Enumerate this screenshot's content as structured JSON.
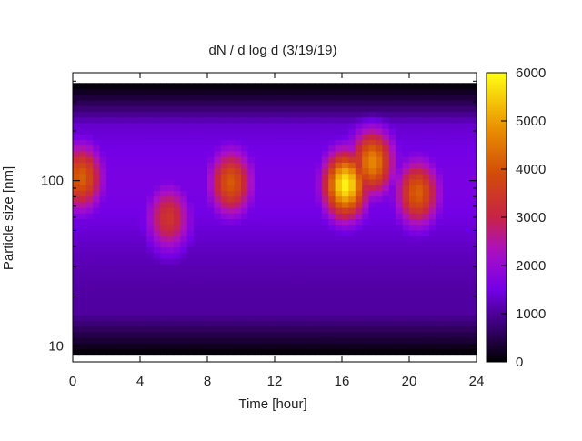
{
  "chart_data": {
    "type": "heatmap",
    "title": "dN / d log d (3/19/19)",
    "xlabel": "Time [hour]",
    "ylabel": "Particle size [nm]",
    "x_range": [
      0,
      24
    ],
    "x_ticks": [
      0,
      4,
      8,
      12,
      16,
      20,
      24
    ],
    "y_scale": "log",
    "y_range_nm": [
      8,
      450
    ],
    "y_ticks": [
      10,
      100
    ],
    "y_ticks_minor": [
      20,
      30,
      40,
      50,
      60,
      70,
      80,
      90,
      200,
      300,
      400
    ],
    "data_y_range_nm": [
      8.9,
      390
    ],
    "colorbar": {
      "range": [
        0,
        6000
      ],
      "ticks": [
        0,
        1000,
        2000,
        3000,
        4000,
        5000,
        6000
      ],
      "palette": "black-purple-magenta-orange-yellow"
    },
    "grid": false,
    "series": [
      {
        "values_description": "concentration hotspots (x hour, diameter nm, peak value)",
        "hotspots": [
          {
            "x": 0.5,
            "y": 105,
            "value": 3300
          },
          {
            "x": 5.7,
            "y": 60,
            "value": 2500
          },
          {
            "x": 9.4,
            "y": 98,
            "value": 3200
          },
          {
            "x": 16.2,
            "y": 95,
            "value": 5000
          },
          {
            "x": 17.8,
            "y": 130,
            "value": 3800
          },
          {
            "x": 20.5,
            "y": 85,
            "value": 3300
          }
        ]
      }
    ]
  }
}
